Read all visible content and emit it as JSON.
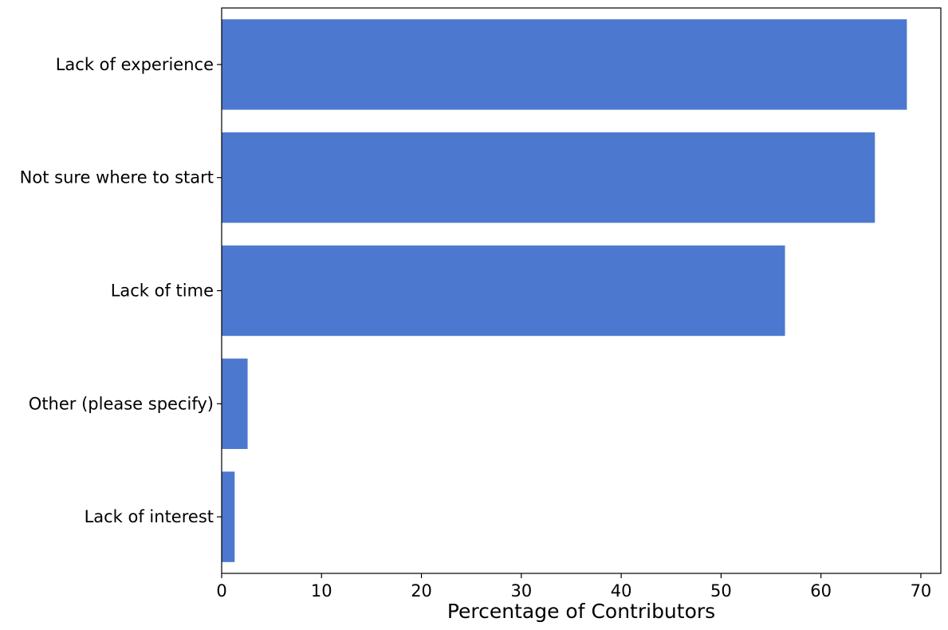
{
  "chart_data": {
    "type": "bar",
    "orientation": "horizontal",
    "title": "",
    "xlabel": "Percentage of Contributors",
    "ylabel": "",
    "categories": [
      "Lack of experience",
      "Not sure where to start",
      "Lack of time",
      "Other (please specify)",
      "Lack of interest"
    ],
    "values": [
      68.6,
      65.4,
      56.4,
      2.6,
      1.3
    ],
    "xlim": [
      0,
      72
    ],
    "xticks": [
      0,
      10,
      20,
      30,
      40,
      50,
      60,
      70
    ],
    "grid": false,
    "legend": "none",
    "bar_color": "#4c78cf"
  }
}
